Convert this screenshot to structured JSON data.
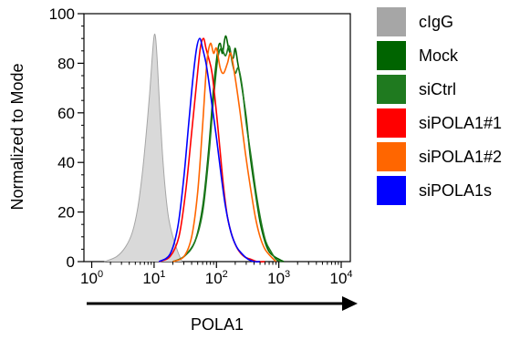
{
  "chart_data": {
    "type": "area",
    "title": "",
    "xlabel": "POLA1",
    "ylabel": "Normalized to Mode",
    "x_scale": "log",
    "xlim": [
      0.75,
      14000
    ],
    "ylim": [
      0,
      100
    ],
    "x_ticks": [
      {
        "value": 1,
        "base": "10",
        "exp": "0"
      },
      {
        "value": 10,
        "base": "10",
        "exp": "1"
      },
      {
        "value": 100,
        "base": "10",
        "exp": "2"
      },
      {
        "value": 1000,
        "base": "10",
        "exp": "3"
      },
      {
        "value": 10000,
        "base": "10",
        "exp": "4"
      }
    ],
    "y_ticks": [
      0,
      20,
      40,
      60,
      80,
      100
    ],
    "legend_position": "right",
    "grid": false,
    "series": [
      {
        "name": "cIgG",
        "color": "#a6a6a6",
        "fill": "#d9d9d9",
        "filled": true,
        "x": [
          1.6,
          2.5,
          3.5,
          4.5,
          5.5,
          6.5,
          7.5,
          8.5,
          9.3,
          10,
          10.6,
          11.3,
          12.3,
          13.5,
          15,
          17,
          20,
          24,
          28
        ],
        "y": [
          0,
          2,
          6,
          12,
          22,
          36,
          52,
          68,
          82,
          91,
          90,
          80,
          62,
          45,
          30,
          18,
          10,
          4,
          0
        ]
      },
      {
        "name": "Mock",
        "color": "#006400",
        "filled": false,
        "x": [
          20,
          30,
          45,
          60,
          75,
          90,
          105,
          115,
          125,
          140,
          160,
          185,
          200,
          220,
          250,
          300,
          350,
          420,
          500,
          600,
          700,
          850,
          1000,
          1200
        ],
        "y": [
          0,
          2,
          8,
          22,
          45,
          70,
          85,
          88,
          84,
          91,
          85,
          82,
          86,
          80,
          72,
          58,
          42,
          28,
          16,
          8,
          4,
          2,
          1,
          0
        ]
      },
      {
        "name": "siCtrl",
        "color": "#1f7a1f",
        "filled": false,
        "x": [
          20,
          30,
          45,
          60,
          75,
          90,
          105,
          120,
          140,
          160,
          180,
          200,
          225,
          260,
          300,
          360,
          430,
          520,
          620,
          750,
          900,
          1100
        ],
        "y": [
          0,
          2,
          8,
          20,
          42,
          66,
          82,
          86,
          83,
          87,
          80,
          76,
          78,
          70,
          56,
          42,
          28,
          16,
          8,
          4,
          1,
          0
        ]
      },
      {
        "name": "siPOLA1#1",
        "color": "#ff0000",
        "filled": false,
        "x": [
          12,
          18,
          25,
          32,
          40,
          48,
          55,
          62,
          68,
          75,
          85,
          100,
          115,
          130,
          150,
          180,
          220,
          280,
          350,
          450,
          600
        ],
        "y": [
          0,
          2,
          10,
          28,
          52,
          72,
          86,
          90,
          86,
          82,
          76,
          60,
          44,
          30,
          18,
          10,
          5,
          2,
          1,
          0,
          0
        ]
      },
      {
        "name": "siPOLA1#2",
        "color": "#ff6600",
        "filled": false,
        "x": [
          20,
          30,
          40,
          50,
          60,
          70,
          80,
          90,
          100,
          115,
          130,
          150,
          170,
          200,
          240,
          290,
          350,
          420,
          500,
          600,
          750,
          900
        ],
        "y": [
          0,
          2,
          10,
          28,
          55,
          80,
          88,
          84,
          86,
          78,
          76,
          80,
          84,
          74,
          60,
          44,
          30,
          18,
          10,
          5,
          2,
          0
        ]
      },
      {
        "name": "siPOLA1s",
        "color": "#0000ff",
        "filled": false,
        "x": [
          12,
          18,
          24,
          30,
          36,
          42,
          48,
          54,
          60,
          68,
          76,
          86,
          100,
          120,
          140,
          170,
          210,
          260,
          320,
          400,
          500
        ],
        "y": [
          0,
          3,
          14,
          34,
          56,
          74,
          86,
          90,
          86,
          80,
          72,
          62,
          50,
          34,
          22,
          12,
          6,
          3,
          1,
          0,
          0
        ]
      }
    ]
  }
}
